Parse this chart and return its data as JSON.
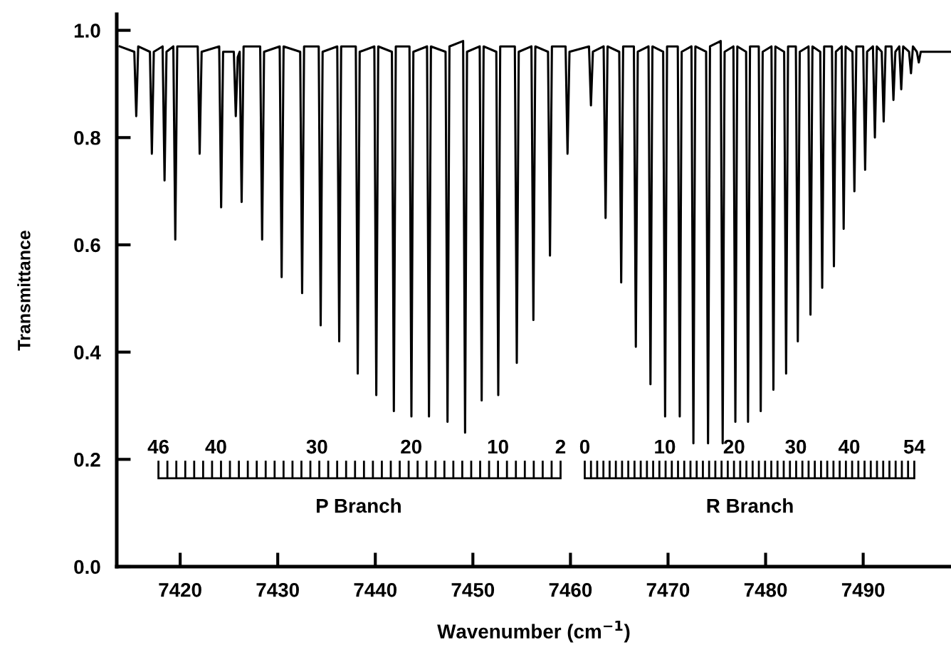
{
  "chart_data": {
    "type": "line",
    "xlabel": "Wavenumber (cm$^{−1}$)",
    "ylabel": "Transmittance",
    "xlim": [
      7413.5,
      7499
    ],
    "ylim": [
      0,
      1.03
    ],
    "xticks": [
      7420,
      7430,
      7440,
      7450,
      7460,
      7470,
      7480,
      7490
    ],
    "yticks": [
      {
        "value": 0,
        "label": "0.0"
      },
      {
        "value": 0.2,
        "label": "0.2"
      },
      {
        "value": 0.4,
        "label": "0.4"
      },
      {
        "value": 0.6,
        "label": "0.6"
      },
      {
        "value": 0.8,
        "label": "0.8"
      },
      {
        "value": 1,
        "label": "1.0"
      }
    ],
    "grid": false,
    "legend": false,
    "marker": "none",
    "line_style": "solid",
    "series": [
      {
        "color": "#000000",
        "x": [
          7413.8,
          7415.3,
          7415.5,
          7415.7,
          7416.9,
          7417.1,
          7417.3,
          7418.2,
          7418.4,
          7418.6,
          7419.3,
          7419.5,
          7419.7,
          7421.8,
          7422.0,
          7422.2,
          7424.0,
          7424.2,
          7424.4,
          7425.5,
          7425.7,
          7425.9,
          7426.1,
          7426.3,
          7426.5,
          7428.2,
          7428.4,
          7428.6,
          7430.2,
          7430.4,
          7430.6,
          7432.3,
          7432.5,
          7432.7,
          7434.2,
          7434.4,
          7434.6,
          7436.1,
          7436.3,
          7436.5,
          7438.0,
          7438.2,
          7438.4,
          7439.9,
          7440.1,
          7440.3,
          7441.7,
          7441.9,
          7442.1,
          7443.5,
          7443.7,
          7443.9,
          7445.3,
          7445.5,
          7445.7,
          7447.2,
          7447.4,
          7447.6,
          7449.0,
          7449.2,
          7449.4,
          7450.7,
          7450.9,
          7451.1,
          7452.4,
          7452.6,
          7452.8,
          7454.3,
          7454.5,
          7454.7,
          7456.0,
          7456.2,
          7456.4,
          7457.7,
          7457.9,
          7458.1,
          7459.5,
          7459.7,
          7459.9,
          7461.9,
          7462.1,
          7462.3,
          7463.4,
          7463.6,
          7463.8,
          7465.0,
          7465.2,
          7465.4,
          7466.5,
          7466.7,
          7466.9,
          7468.0,
          7468.2,
          7468.4,
          7469.5,
          7469.7,
          7469.9,
          7471.0,
          7471.2,
          7471.4,
          7472.4,
          7472.6,
          7472.8,
          7473.9,
          7474.1,
          7474.3,
          7475.4,
          7475.6,
          7475.8,
          7476.7,
          7476.9,
          7477.1,
          7478.0,
          7478.2,
          7478.4,
          7479.3,
          7479.5,
          7479.7,
          7480.6,
          7480.8,
          7481.0,
          7481.9,
          7482.1,
          7482.3,
          7483.1,
          7483.3,
          7483.5,
          7484.4,
          7484.6,
          7484.8,
          7485.6,
          7485.8,
          7486.0,
          7486.8,
          7487.0,
          7487.2,
          7487.8,
          7488.0,
          7488.2,
          7488.9,
          7489.1,
          7489.3,
          7490.0,
          7490.2,
          7490.4,
          7491.0,
          7491.2,
          7491.4,
          7491.9,
          7492.1,
          7492.3,
          7492.9,
          7493.1,
          7493.3,
          7493.7,
          7493.9,
          7494.1,
          7494.7,
          7494.9,
          7495.1,
          7495.5,
          7495.7,
          7495.9,
          7499
        ],
        "values": [
          0.97,
          0.96,
          0.84,
          0.97,
          0.96,
          0.77,
          0.96,
          0.97,
          0.72,
          0.96,
          0.97,
          0.61,
          0.97,
          0.97,
          0.77,
          0.96,
          0.97,
          0.67,
          0.96,
          0.96,
          0.84,
          0.95,
          0.96,
          0.68,
          0.97,
          0.97,
          0.61,
          0.96,
          0.97,
          0.54,
          0.97,
          0.96,
          0.51,
          0.97,
          0.97,
          0.45,
          0.96,
          0.97,
          0.42,
          0.97,
          0.97,
          0.36,
          0.96,
          0.97,
          0.32,
          0.97,
          0.96,
          0.29,
          0.97,
          0.97,
          0.28,
          0.96,
          0.97,
          0.28,
          0.97,
          0.96,
          0.27,
          0.97,
          0.98,
          0.25,
          0.96,
          0.97,
          0.31,
          0.97,
          0.96,
          0.32,
          0.97,
          0.97,
          0.38,
          0.96,
          0.97,
          0.46,
          0.97,
          0.96,
          0.58,
          0.97,
          0.97,
          0.77,
          0.96,
          0.97,
          0.86,
          0.96,
          0.97,
          0.65,
          0.97,
          0.96,
          0.53,
          0.97,
          0.97,
          0.41,
          0.96,
          0.97,
          0.34,
          0.97,
          0.96,
          0.28,
          0.97,
          0.97,
          0.28,
          0.96,
          0.97,
          0.23,
          0.97,
          0.96,
          0.23,
          0.97,
          0.98,
          0.23,
          0.96,
          0.97,
          0.27,
          0.97,
          0.96,
          0.27,
          0.97,
          0.97,
          0.29,
          0.96,
          0.97,
          0.33,
          0.97,
          0.96,
          0.36,
          0.97,
          0.97,
          0.42,
          0.96,
          0.97,
          0.47,
          0.97,
          0.96,
          0.52,
          0.97,
          0.97,
          0.56,
          0.96,
          0.97,
          0.63,
          0.97,
          0.96,
          0.7,
          0.97,
          0.97,
          0.74,
          0.96,
          0.97,
          0.8,
          0.97,
          0.96,
          0.83,
          0.97,
          0.97,
          0.87,
          0.96,
          0.97,
          0.89,
          0.97,
          0.96,
          0.92,
          0.97,
          0.96,
          0.94,
          0.96,
          0.96
        ]
      }
    ],
    "annotations": [
      "46",
      "40",
      "30",
      "20",
      "10",
      "2",
      "P Branch",
      "0",
      "10",
      "20",
      "30",
      "40",
      "54",
      "R Branch"
    ]
  }
}
